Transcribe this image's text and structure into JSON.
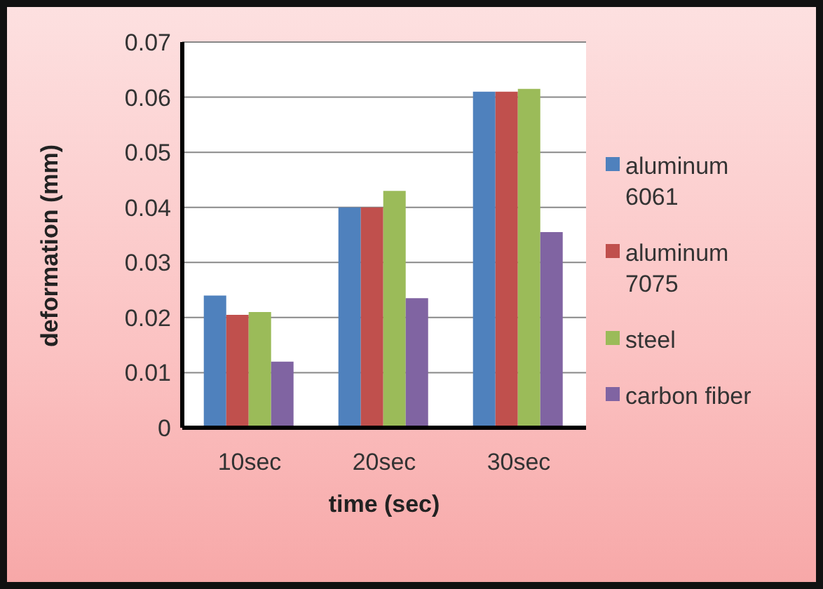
{
  "chart_data": {
    "type": "bar",
    "xlabel": "time (sec)",
    "ylabel": "deformation (mm)",
    "categories": [
      "10sec",
      "20sec",
      "30sec"
    ],
    "series": [
      {
        "name": "aluminum 6061",
        "color": "#4f81bd",
        "values": [
          0.024,
          0.04,
          0.061
        ]
      },
      {
        "name": "aluminum 7075",
        "color": "#c0504d",
        "values": [
          0.0205,
          0.04,
          0.061
        ]
      },
      {
        "name": "steel",
        "color": "#9bbb59",
        "values": [
          0.021,
          0.043,
          0.0615
        ]
      },
      {
        "name": "carbon fiber",
        "color": "#8064a2",
        "values": [
          0.012,
          0.0235,
          0.0355
        ]
      }
    ],
    "ylim": [
      0,
      0.07
    ],
    "yticks": [
      0,
      0.01,
      0.02,
      0.03,
      0.04,
      0.05,
      0.06,
      0.07
    ],
    "grid": "y",
    "legend": "right"
  }
}
